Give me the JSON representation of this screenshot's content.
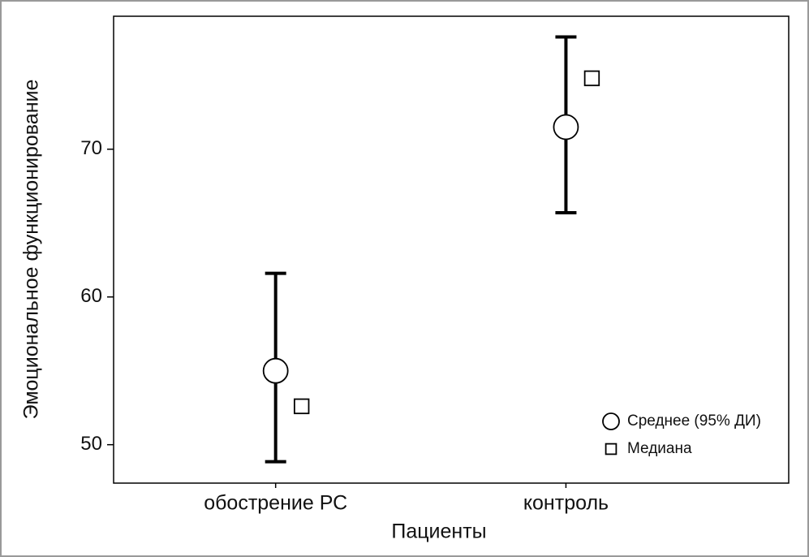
{
  "chart_data": {
    "type": "errorbar",
    "x_label": "Пациенты",
    "y_label": "Эмоциональное функционирование",
    "categories": [
      "обострение РС",
      "контроль"
    ],
    "series": [
      {
        "name": "Среднее (95% ДИ)",
        "marker": "circle",
        "color": "#000000",
        "values": [
          55.0,
          71.5
        ],
        "lower": [
          48.85,
          65.7
        ],
        "upper": [
          61.6,
          77.6
        ]
      },
      {
        "name": "Медиана",
        "marker": "square",
        "color": "#000000",
        "values": [
          52.6,
          74.8
        ]
      }
    ],
    "ylim": [
      47.4,
      79.0
    ],
    "yticks": [
      50,
      60,
      70
    ],
    "legend": "lower right"
  }
}
